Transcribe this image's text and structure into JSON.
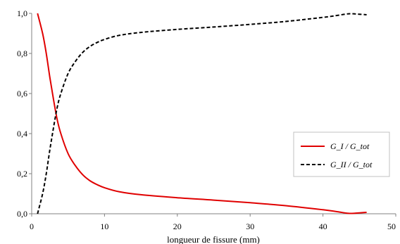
{
  "chart_data": {
    "type": "line",
    "xlabel": "longueur de fissure (mm)",
    "ylabel": "",
    "xlim": [
      0,
      50
    ],
    "ylim": [
      0,
      1
    ],
    "x_ticks": [
      "0",
      "10",
      "20",
      "30",
      "40",
      "50"
    ],
    "y_ticks": [
      "0,0",
      "0,2",
      "0,4",
      "0,6",
      "0,8",
      "1,0"
    ],
    "grid": false,
    "legend_position": "right",
    "series": [
      {
        "name": "G_I / G_tot",
        "color": "#e00000",
        "style": "solid",
        "x": [
          0.8,
          1.5,
          2,
          2.5,
          3,
          3.5,
          4,
          5,
          6,
          7,
          8,
          9,
          10,
          12,
          15,
          20,
          25,
          30,
          35,
          40,
          42,
          43.5,
          44.5,
          46
        ],
        "y": [
          1.0,
          0.9,
          0.8,
          0.68,
          0.57,
          0.47,
          0.4,
          0.3,
          0.24,
          0.195,
          0.165,
          0.145,
          0.13,
          0.11,
          0.095,
          0.08,
          0.068,
          0.055,
          0.04,
          0.02,
          0.01,
          0.002,
          0.003,
          0.007
        ]
      },
      {
        "name": "G_II / G_tot",
        "color": "#000000",
        "style": "dashed",
        "x": [
          0.8,
          1.5,
          2,
          2.5,
          3,
          3.5,
          4,
          5,
          6,
          7,
          8,
          9,
          10,
          12,
          15,
          20,
          25,
          30,
          35,
          40,
          42,
          43.5,
          44.5,
          46
        ],
        "y": [
          0.0,
          0.1,
          0.2,
          0.32,
          0.43,
          0.53,
          0.6,
          0.7,
          0.76,
          0.805,
          0.835,
          0.855,
          0.87,
          0.89,
          0.905,
          0.92,
          0.932,
          0.945,
          0.96,
          0.98,
          0.99,
          0.998,
          0.997,
          0.993
        ]
      }
    ]
  }
}
